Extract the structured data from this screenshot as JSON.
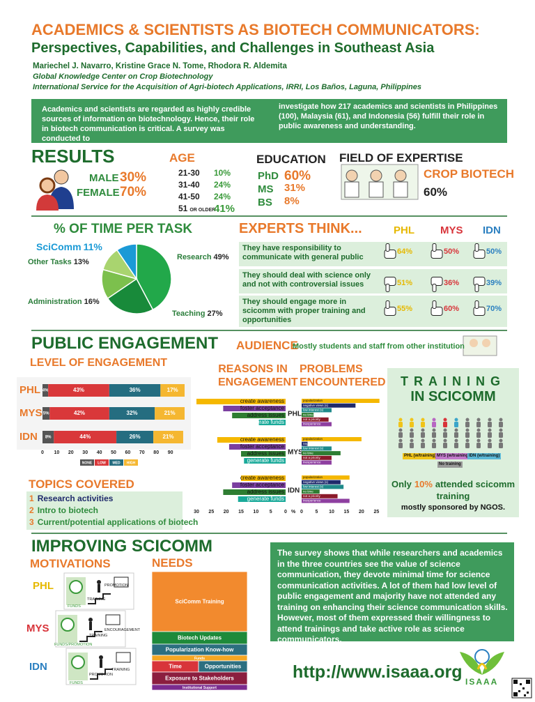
{
  "header": {
    "title": "ACADEMICS & SCIENTISTS AS BIOTECH COMMUNICATORS:",
    "subtitle": "Perspectives, Capabilities, and Challenges in Southeast Asia",
    "authors": "Mariechel J. Navarro, Kristine Grace N. Tome, Rhodora R. Aldemita",
    "affiliation_1": "Global Knowledge Center on Crop Biotechnology",
    "affiliation_2": "International Service for the Acquisition of Agri-biotech Applications, IRRI, Los Baños, Laguna, Philippines"
  },
  "intro": {
    "left": "Academics and scientists are regarded as highly credible sources of information on biotechnology. Hence, their role in biotech communication is critical. A survey was conducted to",
    "right": "investigate how 217 academics and scientists in Philippines (100), Malaysia (61), and Indonesia (56) fulfill their role in public awareness and understanding."
  },
  "results": {
    "title": "RESULTS",
    "gender": [
      {
        "label": "MALE",
        "value": "30%"
      },
      {
        "label": "FEMALE",
        "value": "70%"
      }
    ],
    "age": {
      "title": "AGE",
      "rows": [
        {
          "label": "21-30",
          "value": "10%"
        },
        {
          "label": "31-40",
          "value": "24%"
        },
        {
          "label": "41-50",
          "value": "24%"
        },
        {
          "label": "51",
          "suffix": "OR OLDER",
          "value": "41%"
        }
      ]
    },
    "education": {
      "title": "EDUCATION",
      "rows": [
        {
          "label": "PhD",
          "value": "60%"
        },
        {
          "label": "MS",
          "value": "31%"
        },
        {
          "label": "BS",
          "value": "8%"
        }
      ]
    },
    "expertise": {
      "title": "FIELD OF EXPERTISE",
      "label": "CROP BIOTECH",
      "value": "60%"
    }
  },
  "time_per_task": {
    "type": "pie",
    "title": "% OF TIME PER TASK",
    "categories": [
      "Research",
      "Teaching",
      "Administration",
      "Other Tasks",
      "SciComm"
    ],
    "values": [
      49,
      27,
      16,
      13,
      11
    ],
    "value_labels": [
      "49%",
      "27%",
      "16%",
      "13%",
      "11%"
    ],
    "colors": [
      "#22a84a",
      "#188a3a",
      "#7cc04d",
      "#a9d46f",
      "#1b9ad6"
    ]
  },
  "experts": {
    "title": "EXPERTS THINK...",
    "countries": [
      "PHL",
      "MYS",
      "IDN"
    ],
    "country_colors": [
      "#e6b800",
      "#d8343a",
      "#2a7fc0"
    ],
    "rows": [
      {
        "statement": "They have responsibility to communicate with general public",
        "values": [
          "64%",
          "50%",
          "50%"
        ]
      },
      {
        "statement": "They should deal with science only and not with controversial issues",
        "values": [
          "51%",
          "36%",
          "39%"
        ]
      },
      {
        "statement": "They should engage more in scicomm with proper training and opportunities",
        "values": [
          "55%",
          "60%",
          "70%"
        ]
      }
    ]
  },
  "engagement": {
    "title": "PUBLIC ENGAGEMENT",
    "audience_title": "AUDIENCE",
    "audience": "Mostly students and staff from other institution",
    "level": {
      "type": "bar",
      "title": "LEVEL OF ENGAGEMENT",
      "categories": [
        "PHL",
        "MYS",
        "IDN"
      ],
      "series": [
        {
          "name": "NONE",
          "color": "#555555",
          "values": [
            4,
            5,
            8
          ],
          "value_labels": [
            "4%",
            "5%",
            "8%"
          ]
        },
        {
          "name": "LOW",
          "color": "#d9383a",
          "values": [
            43,
            42,
            44
          ],
          "value_labels": [
            "43%",
            "42%",
            "44%"
          ]
        },
        {
          "name": "MED",
          "color": "#256d80",
          "values": [
            36,
            32,
            26
          ],
          "value_labels": [
            "36%",
            "32%",
            "26%"
          ]
        },
        {
          "name": "HIGH",
          "color": "#f5b731",
          "values": [
            17,
            21,
            21
          ],
          "value_labels": [
            "17%",
            "21%",
            "21%"
          ]
        }
      ],
      "xlim": [
        0,
        100
      ],
      "xticks": [
        0,
        10,
        20,
        30,
        40,
        50,
        60,
        70,
        80,
        90
      ]
    },
    "reasons": {
      "type": "bar",
      "title": "REASONS IN ENGAGEMENT",
      "categories": [
        "create awareness",
        "foster acceptance",
        "address issues",
        "generate funds"
      ],
      "colors": [
        "#f5b800",
        "#7b3fa0",
        "#2e7d32",
        "#1aaa9a"
      ],
      "series": [
        {
          "name": "PHL",
          "values": [
            30,
            21,
            18,
            9
          ]
        },
        {
          "name": "MYS",
          "values": [
            23,
            19,
            15,
            14
          ]
        },
        {
          "name": "IDN",
          "values": [
            15,
            18,
            21,
            16
          ]
        }
      ],
      "xlim": [
        30,
        0
      ],
      "xticks": [
        30,
        25,
        20,
        15,
        10,
        5,
        0
      ],
      "unit": "%"
    },
    "problems": {
      "type": "bar",
      "title": "PROBLEMS ENCOUNTERED",
      "categories": [
        "popularization",
        "negative views (s)",
        "low interest (s)",
        "no time",
        "not a priority",
        "inexperience"
      ],
      "colors": [
        "#f5b800",
        "#1f2a6b",
        "#1f8a8a",
        "#2e7d32",
        "#8b1a2a",
        "#8e3fa0"
      ],
      "series": [
        {
          "name": "PHL",
          "values": [
            26,
            18,
            10,
            4,
            9,
            10
          ]
        },
        {
          "name": "MYS",
          "values": [
            20,
            2,
            10,
            13,
            10,
            10
          ]
        },
        {
          "name": "IDN",
          "values": [
            16,
            13,
            14,
            6,
            12,
            16
          ]
        }
      ],
      "xlim": [
        0,
        27
      ],
      "xticks": [
        0,
        5,
        10,
        15,
        20,
        25
      ]
    },
    "topics": {
      "title": "TOPICS COVERED",
      "items": [
        {
          "number": "1",
          "text": "Research activities"
        },
        {
          "number": "2",
          "text": "Intro to biotech"
        },
        {
          "number": "3",
          "text": "Current/potential applications of biotech"
        }
      ]
    }
  },
  "training": {
    "title": "TRAINING",
    "subtitle": "IN SCICOMM",
    "legend": [
      "PHL (w/training)",
      "MYS (w/training)",
      "IDN (w/training)",
      "No training"
    ],
    "note_before": "Only",
    "note_value": "10%",
    "note_after": "attended scicomm training",
    "note_sponsor": "mostly sponsored by NGOS."
  },
  "improving": {
    "title": "IMPROVING SCICOMM",
    "motivations": {
      "title": "MOTIVATIONS",
      "countries": [
        {
          "name": "PHL",
          "labels": [
            "FUNDS",
            "TRAINING",
            "PROMOTION"
          ]
        },
        {
          "name": "MYS",
          "labels": [
            "FUNDS/PROMOTION",
            "TRAINING",
            "ENCOURAGEMENT"
          ]
        },
        {
          "name": "IDN",
          "labels": [
            "FUNDS",
            "PROMOTION",
            "TRAINING"
          ]
        }
      ]
    },
    "needs": {
      "title": "NEEDS",
      "items": [
        "SciComm Training",
        "Biotech Updates",
        "Popularization Know-how",
        "Funds",
        "Time",
        "Opportunities",
        "Exposure to Stakeholders",
        "Institutional Support"
      ]
    }
  },
  "conclusion": "The survey shows that while researchers and academics in the three countries see the value of science communication, they devote minimal time for science communication activities. A lot of them had low level of public engagement and majority have not attended any training on enhancing their science communication skills. However, most of them expressed their willingness to attend trainings and take active role as science communicators.",
  "footer": {
    "url": "http://www.isaaa.org",
    "logo": "ISAAA"
  }
}
